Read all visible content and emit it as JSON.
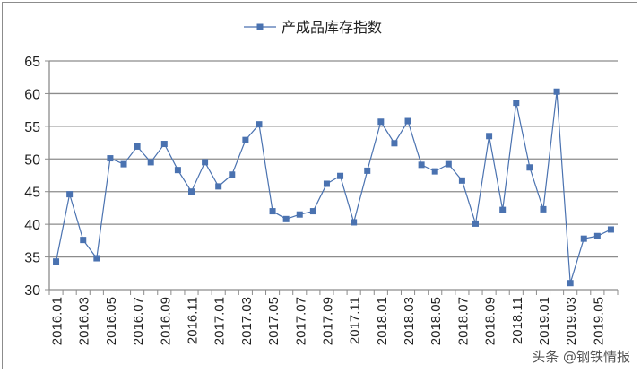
{
  "chart_data": {
    "type": "line",
    "title": "",
    "legend": {
      "entries": [
        "产成品库存指数"
      ],
      "placement": "top-center"
    },
    "series": [
      {
        "name": "产成品库存指数",
        "color": "#4a72b0",
        "marker": "square",
        "values": [
          34.3,
          44.6,
          37.6,
          34.8,
          50.1,
          49.2,
          51.9,
          49.5,
          52.3,
          48.3,
          45.0,
          49.5,
          45.8,
          47.6,
          52.9,
          55.3,
          42.0,
          40.8,
          41.5,
          42.0,
          46.2,
          47.4,
          40.3,
          48.2,
          55.7,
          52.4,
          55.8,
          49.1,
          48.1,
          49.2,
          46.7,
          40.1,
          53.5,
          42.2,
          58.6,
          48.7,
          42.3,
          60.3,
          31.0,
          37.8,
          38.2,
          39.2
        ]
      }
    ],
    "x": [
      "2016.01",
      "2016.02",
      "2016.03",
      "2016.04",
      "2016.05",
      "2016.06",
      "2016.07",
      "2016.08",
      "2016.09",
      "2016.10",
      "2016.11",
      "2016.12",
      "2017.01",
      "2017.02",
      "2017.03",
      "2017.04",
      "2017.05",
      "2017.06",
      "2017.07",
      "2017.08",
      "2017.09",
      "2017.10",
      "2017.11",
      "2017.12",
      "2018.01",
      "2018.02",
      "2018.03",
      "2018.04",
      "2018.05",
      "2018.06",
      "2018.07",
      "2018.08",
      "2018.09",
      "2018.10",
      "2018.11",
      "2018.12",
      "2019.01",
      "2019.02",
      "2019.03",
      "2019.04",
      "2019.05",
      "2019.06"
    ],
    "xtick_labels": [
      "2016.01",
      "2016.03",
      "2016.05",
      "2016.07",
      "2016.09",
      "2016.11",
      "2017.01",
      "2017.03",
      "2017.05",
      "2017.07",
      "2017.09",
      "2017.11",
      "2018.01",
      "2018.03",
      "2018.05",
      "2018.07",
      "2018.09",
      "2018.11",
      "2019.01",
      "2019.03",
      "2019.05"
    ],
    "yticks": [
      30,
      35,
      40,
      45,
      50,
      55,
      60,
      65
    ],
    "ylim": [
      30,
      65
    ],
    "xlabel": "",
    "ylabel": "",
    "grid": true
  },
  "watermark": "头条 @钢铁情报"
}
